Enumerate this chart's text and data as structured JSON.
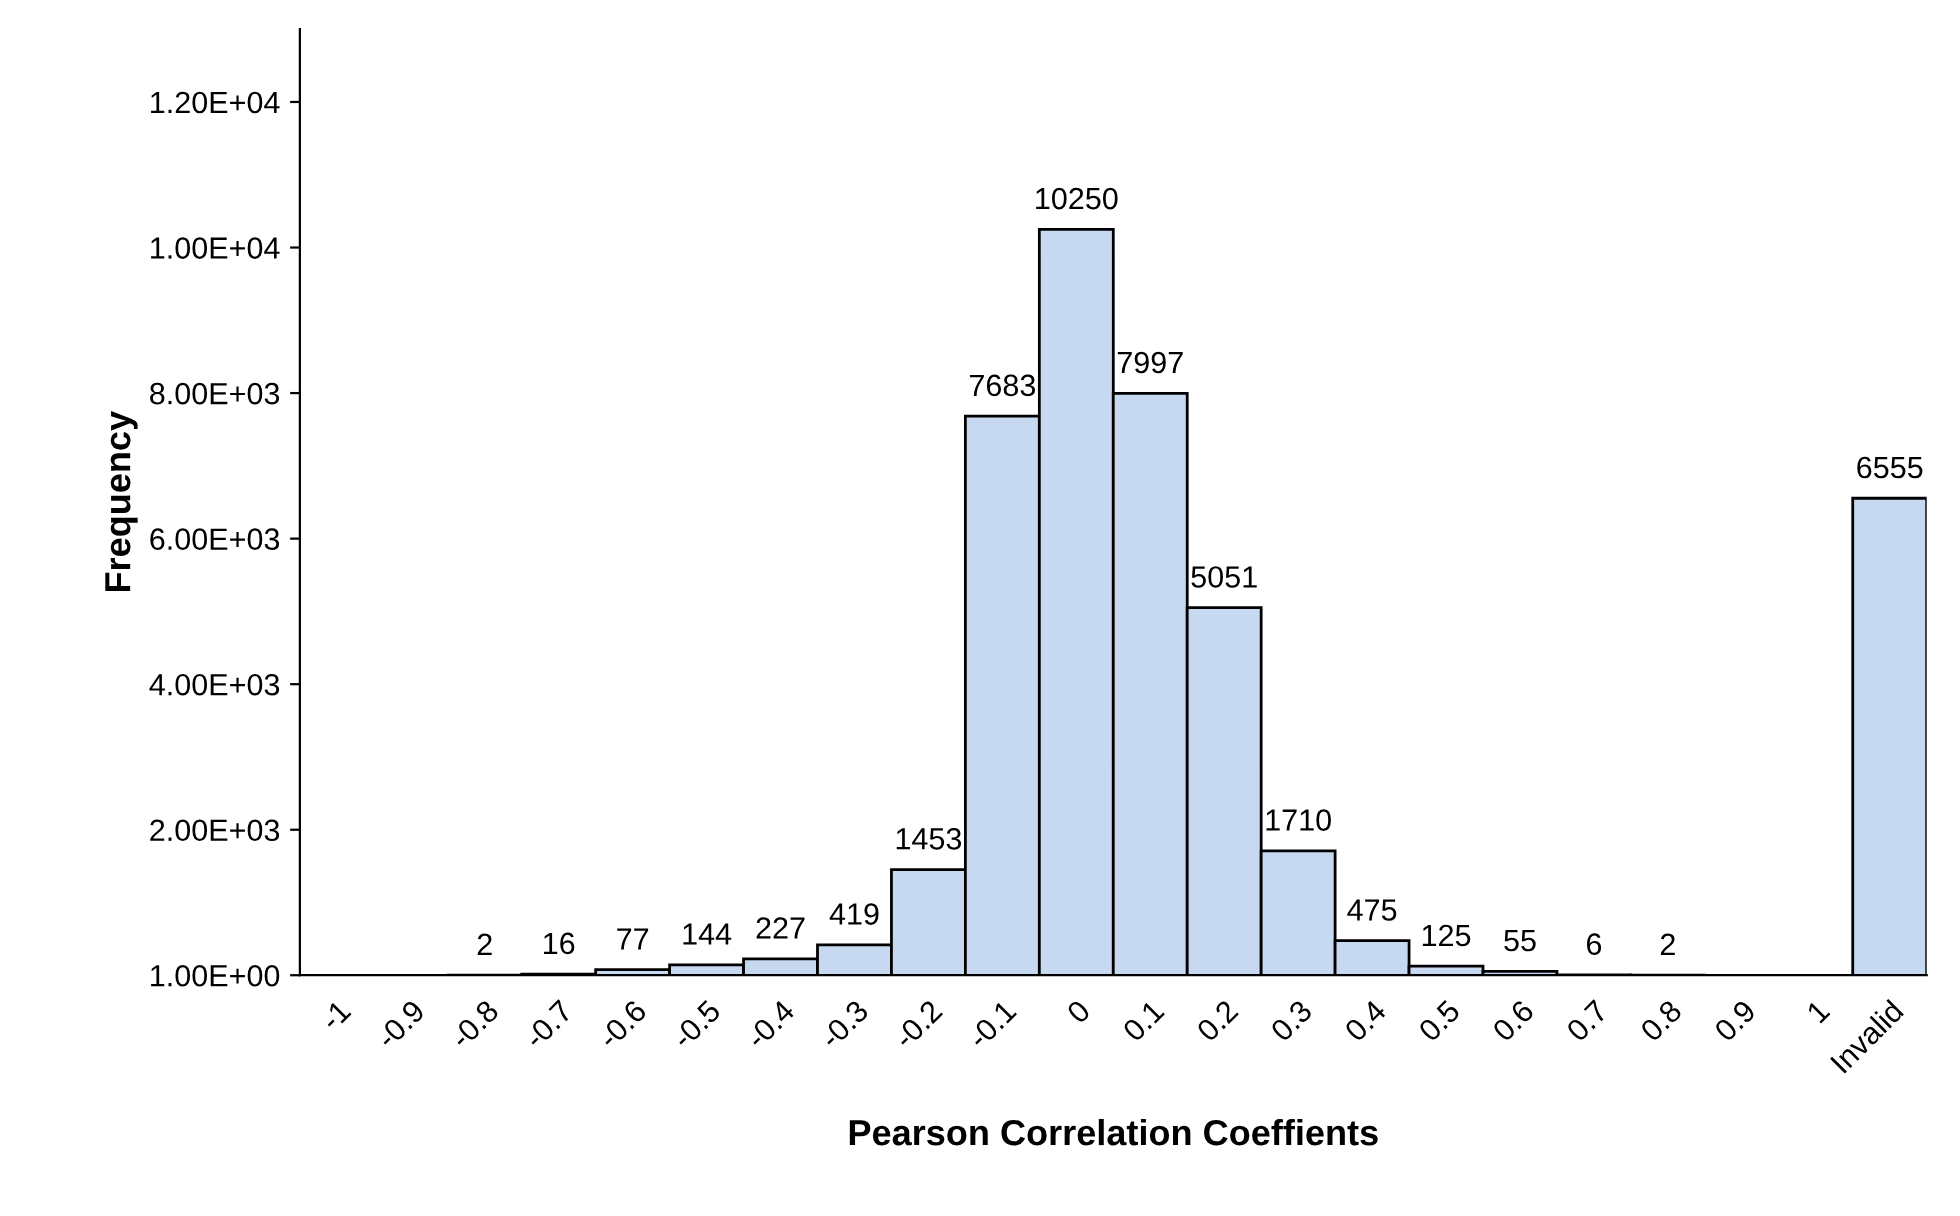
{
  "chart_data": {
    "type": "bar",
    "xlabel": "Pearson Correlation Coeffients",
    "ylabel": "Frequency",
    "categories": [
      "-1",
      "-0.9",
      "-0.8",
      "-0.7",
      "-0.6",
      "-0.5",
      "-0.4",
      "-0.3",
      "-0.2",
      "-0.1",
      "0",
      "0.1",
      "0.2",
      "0.3",
      "0.4",
      "0.5",
      "0.6",
      "0.7",
      "0.8",
      "0.9",
      "1",
      "Invalid"
    ],
    "values": [
      null,
      null,
      2,
      16,
      77,
      144,
      227,
      419,
      1453,
      7683,
      10250,
      7997,
      5051,
      1710,
      475,
      125,
      55,
      6,
      2,
      null,
      null,
      6555
    ],
    "value_labels": [
      null,
      null,
      "2",
      "16",
      "77",
      "144",
      "227",
      "419",
      "1453",
      "7683",
      "10250",
      "7997",
      "5051",
      "1710",
      "475",
      "125",
      "55",
      "6",
      "2",
      null,
      null,
      "6555"
    ],
    "color": "#c6d9f1",
    "ylim": [
      1,
      13000
    ],
    "yticks": [
      {
        "value": 1,
        "label": "1.00E+00"
      },
      {
        "value": 2000,
        "label": "2.00E+03"
      },
      {
        "value": 4000,
        "label": "4.00E+03"
      },
      {
        "value": 6000,
        "label": "6.00E+03"
      },
      {
        "value": 8000,
        "label": "8.00E+03"
      },
      {
        "value": 10000,
        "label": "1.00E+04"
      },
      {
        "value": 12000,
        "label": "1.20E+04"
      }
    ],
    "grid": false,
    "legend": false
  }
}
